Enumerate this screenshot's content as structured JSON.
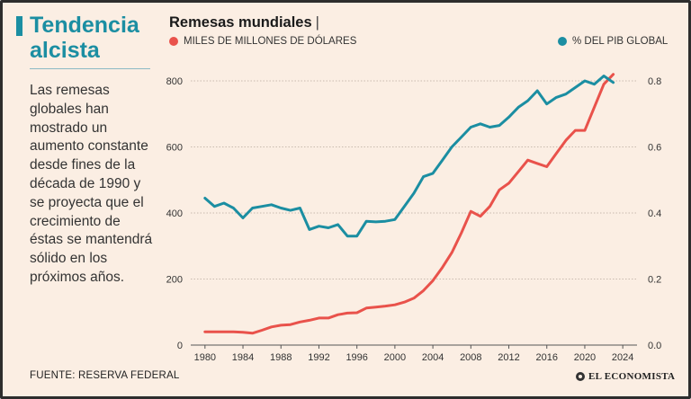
{
  "headline": "Tendencia alcista",
  "body": "Las remesas globales han mostrado un aumento constante desde fines de la década de 1990 y se proyecta que el crecimiento de éstas se mantendrá sólido en los próximos años.",
  "source": "FUENTE: RESERVA FEDERAL",
  "logo": "EL ECONOMISTA",
  "colors": {
    "red": "#e9524b",
    "teal": "#1b8ea2",
    "background": "#fbeee3"
  },
  "chart_data": {
    "type": "line",
    "title": "Remesas mundiales",
    "legend": {
      "left": "MILES DE MILLONES DE DÓLARES",
      "right": "% DEL PIB GLOBAL"
    },
    "x_ticks": [
      "1980",
      "1984",
      "1988",
      "1992",
      "1996",
      "2000",
      "2004",
      "2008",
      "2012",
      "2016",
      "2020",
      "2024"
    ],
    "xlim": [
      1978.5,
      2025.5
    ],
    "y_left": {
      "ticks": [
        "0",
        "200",
        "400",
        "600",
        "800"
      ],
      "ylim": [
        0,
        800
      ]
    },
    "y_right": {
      "ticks": [
        "0.0",
        "0.2",
        "0.4",
        "0.6",
        "0.8"
      ],
      "ylim": [
        0,
        0.8
      ]
    },
    "series": [
      {
        "name": "MILES DE MILLONES DE DÓLARES",
        "axis": "left",
        "color": "#e9524b",
        "x": [
          1980,
          1981,
          1982,
          1983,
          1984,
          1985,
          1986,
          1987,
          1988,
          1989,
          1990,
          1991,
          1992,
          1993,
          1994,
          1995,
          1996,
          1997,
          1998,
          1999,
          2000,
          2001,
          2002,
          2003,
          2004,
          2005,
          2006,
          2007,
          2008,
          2009,
          2010,
          2011,
          2012,
          2013,
          2014,
          2015,
          2016,
          2017,
          2018,
          2019,
          2020,
          2021,
          2022,
          2023
        ],
        "values": [
          40,
          40,
          40,
          40,
          39,
          36,
          45,
          55,
          60,
          62,
          70,
          75,
          82,
          82,
          92,
          97,
          98,
          112,
          115,
          118,
          122,
          130,
          142,
          165,
          195,
          235,
          280,
          340,
          405,
          390,
          420,
          470,
          490,
          525,
          560,
          550,
          540,
          580,
          620,
          650,
          650,
          720,
          790,
          820
        ]
      },
      {
        "name": "% DEL PIB GLOBAL",
        "axis": "right",
        "color": "#1b8ea2",
        "x": [
          1980,
          1981,
          1982,
          1983,
          1984,
          1985,
          1986,
          1987,
          1988,
          1989,
          1990,
          1991,
          1992,
          1993,
          1994,
          1995,
          1996,
          1997,
          1998,
          1999,
          2000,
          2001,
          2002,
          2003,
          2004,
          2005,
          2006,
          2007,
          2008,
          2009,
          2010,
          2011,
          2012,
          2013,
          2014,
          2015,
          2016,
          2017,
          2018,
          2019,
          2020,
          2021,
          2022,
          2023
        ],
        "values": [
          0.445,
          0.42,
          0.43,
          0.415,
          0.385,
          0.415,
          0.42,
          0.425,
          0.415,
          0.408,
          0.415,
          0.35,
          0.36,
          0.355,
          0.365,
          0.33,
          0.33,
          0.375,
          0.373,
          0.375,
          0.38,
          0.42,
          0.46,
          0.51,
          0.52,
          0.56,
          0.6,
          0.63,
          0.66,
          0.67,
          0.66,
          0.665,
          0.69,
          0.72,
          0.74,
          0.77,
          0.73,
          0.75,
          0.76,
          0.78,
          0.8,
          0.79,
          0.815,
          0.795
        ]
      }
    ]
  }
}
